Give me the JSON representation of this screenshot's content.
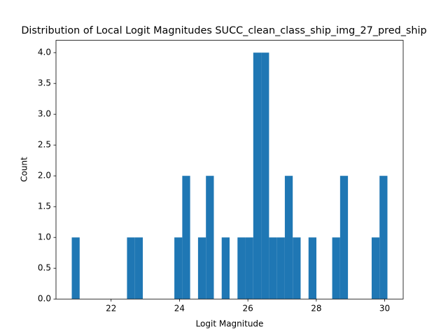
{
  "chart_data": {
    "type": "histogram",
    "title": "Distribution of Local Logit Magnitudes SUCC_clean_class_ship_img_27_pred_ship",
    "x_label": "Logit Magnitude",
    "y_label": "Count",
    "color": "#1f77b4",
    "bins": [
      20.85,
      21.081,
      21.312,
      21.542,
      21.773,
      22.004,
      22.235,
      22.465,
      22.696,
      22.927,
      23.158,
      23.388,
      23.619,
      23.85,
      24.081,
      24.311,
      24.542,
      24.773,
      25.004,
      25.234,
      25.465,
      25.696,
      25.927,
      26.157,
      26.388,
      26.619,
      26.85,
      27.08,
      27.311,
      27.542,
      27.773,
      28.003,
      28.234,
      28.465,
      28.696,
      28.926,
      29.157,
      29.388,
      29.619,
      29.849,
      30.08
    ],
    "counts": [
      1,
      0,
      0,
      0,
      0,
      0,
      0,
      1,
      1,
      0,
      0,
      0,
      0,
      1,
      2,
      0,
      1,
      2,
      0,
      1,
      0,
      1,
      1,
      4,
      4,
      1,
      1,
      2,
      1,
      0,
      1,
      0,
      0,
      1,
      2,
      0,
      0,
      0,
      1,
      2
    ],
    "xlim": [
      20.389,
      30.541
    ],
    "ylim": [
      0,
      4.2
    ],
    "xticks": [
      22,
      24,
      26,
      28,
      30
    ],
    "yticks": [
      {
        "value": 0,
        "label": "0.0"
      },
      {
        "value": 0.5,
        "label": "0.5"
      },
      {
        "value": 1,
        "label": "1.0"
      },
      {
        "value": 1.5,
        "label": "1.5"
      },
      {
        "value": 2,
        "label": "2.0"
      },
      {
        "value": 2.5,
        "label": "2.5"
      },
      {
        "value": 3,
        "label": "3.0"
      },
      {
        "value": 3.5,
        "label": "3.5"
      },
      {
        "value": 4,
        "label": "4.0"
      }
    ]
  }
}
